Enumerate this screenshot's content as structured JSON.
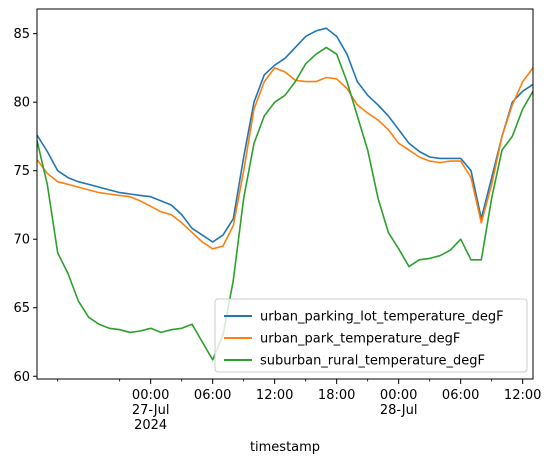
{
  "chart_data": {
    "type": "line",
    "xlabel": "timestamp",
    "ylabel": "",
    "title": "",
    "ylim": [
      59.8,
      86.8
    ],
    "xlim": [
      "2024-07-26 13:00",
      "2024-07-28 13:00"
    ],
    "y_ticks": [
      60,
      65,
      70,
      75,
      80,
      85
    ],
    "x_ticks": [
      {
        "t": "2024-07-27 00:00",
        "lines": [
          "00:00",
          "27-Jul",
          "2024"
        ]
      },
      {
        "t": "2024-07-27 06:00",
        "lines": [
          "06:00"
        ]
      },
      {
        "t": "2024-07-27 12:00",
        "lines": [
          "12:00"
        ]
      },
      {
        "t": "2024-07-27 18:00",
        "lines": [
          "18:00"
        ]
      },
      {
        "t": "2024-07-28 00:00",
        "lines": [
          "00:00",
          "28-Jul"
        ]
      },
      {
        "t": "2024-07-28 06:00",
        "lines": [
          "06:00"
        ]
      },
      {
        "t": "2024-07-28 12:00",
        "lines": [
          "12:00"
        ]
      }
    ],
    "legend_position": "lower-right",
    "series": [
      {
        "name": "urban_parking_lot_temperature_degF",
        "color": "#1f77b4",
        "points": [
          [
            "2024-07-26 13:00",
            77.6
          ],
          [
            "2024-07-26 14:00",
            76.4
          ],
          [
            "2024-07-26 15:00",
            75.0
          ],
          [
            "2024-07-26 16:00",
            74.5
          ],
          [
            "2024-07-26 17:00",
            74.2
          ],
          [
            "2024-07-26 18:00",
            74.0
          ],
          [
            "2024-07-26 19:00",
            73.8
          ],
          [
            "2024-07-26 20:00",
            73.6
          ],
          [
            "2024-07-26 21:00",
            73.4
          ],
          [
            "2024-07-26 22:00",
            73.3
          ],
          [
            "2024-07-26 23:00",
            73.2
          ],
          [
            "2024-07-27 00:00",
            73.1
          ],
          [
            "2024-07-27 01:00",
            72.8
          ],
          [
            "2024-07-27 02:00",
            72.5
          ],
          [
            "2024-07-27 03:00",
            71.8
          ],
          [
            "2024-07-27 04:00",
            70.8
          ],
          [
            "2024-07-27 05:00",
            70.3
          ],
          [
            "2024-07-27 06:00",
            69.8
          ],
          [
            "2024-07-27 07:00",
            70.3
          ],
          [
            "2024-07-27 08:00",
            71.5
          ],
          [
            "2024-07-27 09:00",
            76.0
          ],
          [
            "2024-07-27 10:00",
            80.0
          ],
          [
            "2024-07-27 11:00",
            82.0
          ],
          [
            "2024-07-27 12:00",
            82.7
          ],
          [
            "2024-07-27 13:00",
            83.2
          ],
          [
            "2024-07-27 14:00",
            84.0
          ],
          [
            "2024-07-27 15:00",
            84.8
          ],
          [
            "2024-07-27 16:00",
            85.2
          ],
          [
            "2024-07-27 17:00",
            85.4
          ],
          [
            "2024-07-27 18:00",
            84.8
          ],
          [
            "2024-07-27 19:00",
            83.5
          ],
          [
            "2024-07-27 20:00",
            81.5
          ],
          [
            "2024-07-27 21:00",
            80.5
          ],
          [
            "2024-07-27 22:00",
            79.8
          ],
          [
            "2024-07-27 23:00",
            79.0
          ],
          [
            "2024-07-28 00:00",
            78.0
          ],
          [
            "2024-07-28 01:00",
            77.0
          ],
          [
            "2024-07-28 02:00",
            76.4
          ],
          [
            "2024-07-28 03:00",
            76.0
          ],
          [
            "2024-07-28 04:00",
            75.9
          ],
          [
            "2024-07-28 05:00",
            75.9
          ],
          [
            "2024-07-28 06:00",
            75.9
          ],
          [
            "2024-07-28 07:00",
            75.0
          ],
          [
            "2024-07-28 08:00",
            71.5
          ],
          [
            "2024-07-28 09:00",
            74.5
          ],
          [
            "2024-07-28 10:00",
            77.5
          ],
          [
            "2024-07-28 11:00",
            80.0
          ],
          [
            "2024-07-28 12:00",
            80.8
          ],
          [
            "2024-07-28 13:00",
            81.3
          ]
        ]
      },
      {
        "name": "urban_park_temperature_degF",
        "color": "#ff7f0e",
        "points": [
          [
            "2024-07-26 13:00",
            75.8
          ],
          [
            "2024-07-26 14:00",
            74.8
          ],
          [
            "2024-07-26 15:00",
            74.2
          ],
          [
            "2024-07-26 16:00",
            74.0
          ],
          [
            "2024-07-26 17:00",
            73.8
          ],
          [
            "2024-07-26 18:00",
            73.6
          ],
          [
            "2024-07-26 19:00",
            73.4
          ],
          [
            "2024-07-26 20:00",
            73.3
          ],
          [
            "2024-07-26 21:00",
            73.2
          ],
          [
            "2024-07-26 22:00",
            73.1
          ],
          [
            "2024-07-26 23:00",
            72.8
          ],
          [
            "2024-07-27 00:00",
            72.4
          ],
          [
            "2024-07-27 01:00",
            72.0
          ],
          [
            "2024-07-27 02:00",
            71.8
          ],
          [
            "2024-07-27 03:00",
            71.2
          ],
          [
            "2024-07-27 04:00",
            70.5
          ],
          [
            "2024-07-27 05:00",
            69.8
          ],
          [
            "2024-07-27 06:00",
            69.3
          ],
          [
            "2024-07-27 07:00",
            69.5
          ],
          [
            "2024-07-27 08:00",
            71.0
          ],
          [
            "2024-07-27 09:00",
            75.0
          ],
          [
            "2024-07-27 10:00",
            79.5
          ],
          [
            "2024-07-27 11:00",
            81.5
          ],
          [
            "2024-07-27 12:00",
            82.5
          ],
          [
            "2024-07-27 13:00",
            82.2
          ],
          [
            "2024-07-27 14:00",
            81.6
          ],
          [
            "2024-07-27 15:00",
            81.5
          ],
          [
            "2024-07-27 16:00",
            81.5
          ],
          [
            "2024-07-27 17:00",
            81.8
          ],
          [
            "2024-07-27 18:00",
            81.7
          ],
          [
            "2024-07-27 19:00",
            81.0
          ],
          [
            "2024-07-27 20:00",
            79.8
          ],
          [
            "2024-07-27 21:00",
            79.2
          ],
          [
            "2024-07-27 22:00",
            78.7
          ],
          [
            "2024-07-27 23:00",
            78.0
          ],
          [
            "2024-07-28 00:00",
            77.0
          ],
          [
            "2024-07-28 01:00",
            76.5
          ],
          [
            "2024-07-28 02:00",
            76.0
          ],
          [
            "2024-07-28 03:00",
            75.7
          ],
          [
            "2024-07-28 04:00",
            75.6
          ],
          [
            "2024-07-28 05:00",
            75.7
          ],
          [
            "2024-07-28 06:00",
            75.7
          ],
          [
            "2024-07-28 07:00",
            74.5
          ],
          [
            "2024-07-28 08:00",
            71.2
          ],
          [
            "2024-07-28 09:00",
            74.0
          ],
          [
            "2024-07-28 10:00",
            77.5
          ],
          [
            "2024-07-28 11:00",
            79.8
          ],
          [
            "2024-07-28 12:00",
            81.5
          ],
          [
            "2024-07-28 13:00",
            82.5
          ]
        ]
      },
      {
        "name": "suburban_rural_temperature_degF",
        "color": "#2ca02c",
        "points": [
          [
            "2024-07-26 13:00",
            77.2
          ],
          [
            "2024-07-26 14:00",
            74.0
          ],
          [
            "2024-07-26 15:00",
            69.0
          ],
          [
            "2024-07-26 16:00",
            67.5
          ],
          [
            "2024-07-26 17:00",
            65.5
          ],
          [
            "2024-07-26 18:00",
            64.3
          ],
          [
            "2024-07-26 19:00",
            63.8
          ],
          [
            "2024-07-26 20:00",
            63.5
          ],
          [
            "2024-07-26 21:00",
            63.4
          ],
          [
            "2024-07-26 22:00",
            63.2
          ],
          [
            "2024-07-26 23:00",
            63.3
          ],
          [
            "2024-07-27 00:00",
            63.5
          ],
          [
            "2024-07-27 01:00",
            63.2
          ],
          [
            "2024-07-27 02:00",
            63.4
          ],
          [
            "2024-07-27 03:00",
            63.5
          ],
          [
            "2024-07-27 04:00",
            63.8
          ],
          [
            "2024-07-27 05:00",
            62.5
          ],
          [
            "2024-07-27 06:00",
            61.2
          ],
          [
            "2024-07-27 07:00",
            63.0
          ],
          [
            "2024-07-27 08:00",
            67.0
          ],
          [
            "2024-07-27 09:00",
            73.0
          ],
          [
            "2024-07-27 10:00",
            77.0
          ],
          [
            "2024-07-27 11:00",
            79.0
          ],
          [
            "2024-07-27 12:00",
            80.0
          ],
          [
            "2024-07-27 13:00",
            80.5
          ],
          [
            "2024-07-27 14:00",
            81.5
          ],
          [
            "2024-07-27 15:00",
            82.8
          ],
          [
            "2024-07-27 16:00",
            83.5
          ],
          [
            "2024-07-27 17:00",
            84.0
          ],
          [
            "2024-07-27 18:00",
            83.5
          ],
          [
            "2024-07-27 19:00",
            81.5
          ],
          [
            "2024-07-27 20:00",
            79.0
          ],
          [
            "2024-07-27 21:00",
            76.5
          ],
          [
            "2024-07-27 22:00",
            73.0
          ],
          [
            "2024-07-27 23:00",
            70.5
          ],
          [
            "2024-07-28 00:00",
            69.3
          ],
          [
            "2024-07-28 01:00",
            68.0
          ],
          [
            "2024-07-28 02:00",
            68.5
          ],
          [
            "2024-07-28 03:00",
            68.6
          ],
          [
            "2024-07-28 04:00",
            68.8
          ],
          [
            "2024-07-28 05:00",
            69.2
          ],
          [
            "2024-07-28 06:00",
            70.0
          ],
          [
            "2024-07-28 07:00",
            68.5
          ],
          [
            "2024-07-28 08:00",
            68.5
          ],
          [
            "2024-07-28 09:00",
            73.0
          ],
          [
            "2024-07-28 10:00",
            76.5
          ],
          [
            "2024-07-28 11:00",
            77.5
          ],
          [
            "2024-07-28 12:00",
            79.5
          ],
          [
            "2024-07-28 13:00",
            80.8
          ]
        ]
      }
    ]
  }
}
